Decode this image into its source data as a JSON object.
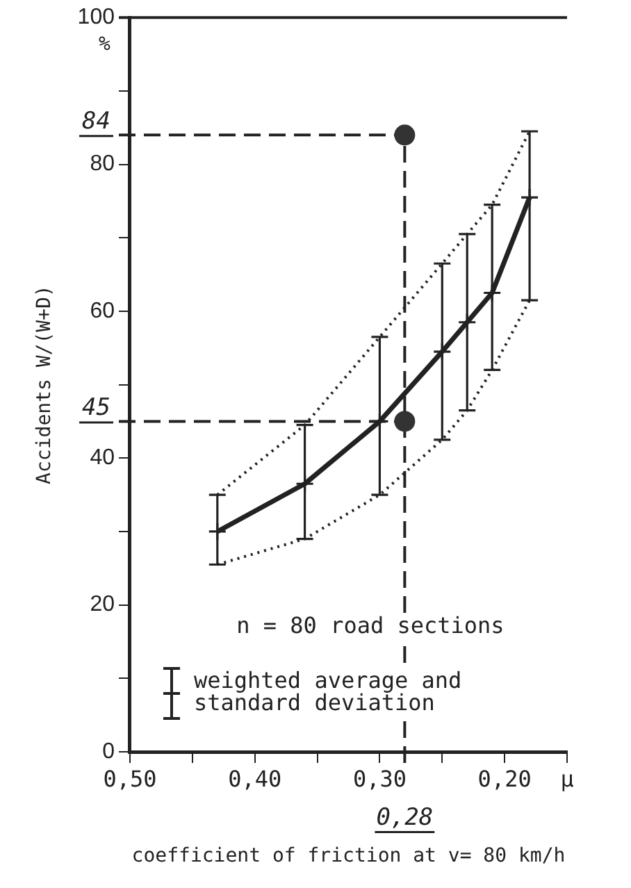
{
  "chart_data": {
    "type": "line",
    "xlabel": "coefficient of friction at v= 80 km/h",
    "ylabel": "Accidents W/(W+D)",
    "annotations": [
      "%",
      "n = 80 road sections"
    ],
    "xlim": [
      0.5,
      0.15
    ],
    "xticks": [
      {
        "value": 0.5,
        "label": "0,50"
      },
      {
        "value": 0.45,
        "label": null
      },
      {
        "value": 0.4,
        "label": "0,40"
      },
      {
        "value": 0.35,
        "label": null
      },
      {
        "value": 0.3,
        "label": "0,30"
      },
      {
        "value": 0.25,
        "label": null
      },
      {
        "value": 0.2,
        "label": "0,20"
      },
      {
        "value": 0.15,
        "label": "μ"
      }
    ],
    "ylim": [
      0,
      100
    ],
    "yticks": [
      0,
      {
        "value": 10,
        "label": null
      },
      20,
      {
        "value": 30,
        "label": null
      },
      40,
      {
        "value": 50,
        "label": null
      },
      60,
      {
        "value": 70,
        "label": null
      },
      80,
      {
        "value": 90,
        "label": null
      },
      100
    ],
    "grid": false,
    "legend": "bottom left",
    "line_style": "solid",
    "marker": "none",
    "ref_lines": [
      {
        "axis": "y",
        "value": 84,
        "label": "84",
        "line_style": "dashed",
        "color": "#222222"
      },
      {
        "axis": "y",
        "value": 45,
        "label": "45",
        "line_style": "dashed",
        "color": "#222222"
      },
      {
        "axis": "x",
        "value": 0.28,
        "label": "0,28",
        "line_style": "dashed",
        "color": "#222222"
      }
    ],
    "series": [
      {
        "name": "weighted average and standard deviation",
        "color": "#222222",
        "marker": "cross",
        "x": [
          0.43,
          0.36,
          0.3,
          0.25,
          0.23,
          0.21,
          0.18
        ],
        "values": [
          30,
          36.5,
          45,
          54.5,
          58.5,
          62.5,
          75.5
        ],
        "errors": [
          [
            25.5,
            35
          ],
          [
            29,
            44.5
          ],
          [
            35,
            56.5
          ],
          [
            42.5,
            66.5
          ],
          [
            46.5,
            70.5
          ],
          [
            52,
            74.5
          ],
          [
            61.5,
            84.5
          ]
        ]
      },
      {
        "type": "line",
        "line_style": "dotted",
        "color": "#222222",
        "x": [
          0.43,
          0.36,
          0.3,
          0.25,
          0.23,
          0.21,
          0.18
        ],
        "values": [
          25.5,
          29,
          35,
          42.5,
          46.5,
          52,
          61.5
        ]
      },
      {
        "type": "line",
        "line_style": "dotted",
        "color": "#222222",
        "x": [
          0.43,
          0.36,
          0.3,
          0.25,
          0.23,
          0.21,
          0.18
        ],
        "values": [
          35,
          44.5,
          56.5,
          66.5,
          70.5,
          74.5,
          84.5
        ]
      },
      {
        "type": "scatter",
        "marker": "circle",
        "color": "#333333",
        "x": [
          0.28,
          0.28
        ],
        "values": [
          84,
          45
        ]
      }
    ]
  }
}
